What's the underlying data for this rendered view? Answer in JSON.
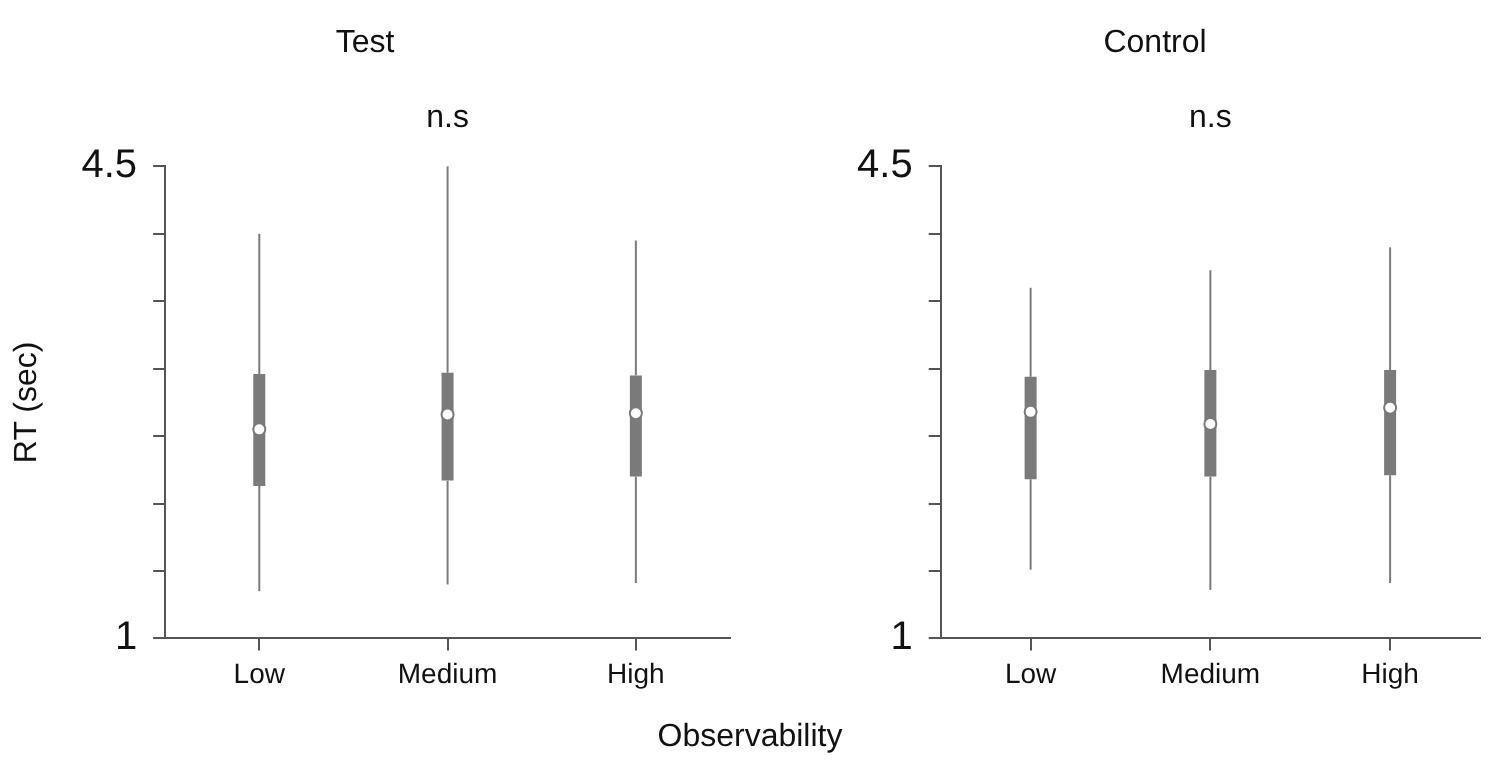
{
  "chart_data": [
    {
      "type": "box",
      "title": "Test",
      "annotations": [
        "n.s"
      ],
      "ylabel": "RT (sec)",
      "xlabel": "Observability",
      "categories": [
        "Low",
        "Medium",
        "High"
      ],
      "colors": [
        "#7a7a7a",
        "#7a7a7a",
        "#7a7a7a"
      ],
      "boxes": [
        {
          "low": 1.35,
          "q1": 2.13,
          "median": 2.55,
          "q3": 2.96,
          "high": 4.0
        },
        {
          "low": 1.4,
          "q1": 2.17,
          "median": 2.66,
          "q3": 2.97,
          "high": 4.5
        },
        {
          "low": 1.41,
          "q1": 2.2,
          "median": 2.67,
          "q3": 2.95,
          "high": 3.95
        }
      ],
      "ylim": [
        1,
        4.5
      ],
      "yticks": [
        {
          "value": 1,
          "label": "1"
        },
        {
          "value": 1.5,
          "label": null
        },
        {
          "value": 2,
          "label": null
        },
        {
          "value": 2.5,
          "label": null
        },
        {
          "value": 3,
          "label": null
        },
        {
          "value": 3.5,
          "label": null
        },
        {
          "value": 4,
          "label": null
        },
        {
          "value": 4.5,
          "label": "4.5"
        }
      ],
      "grid": false,
      "legend": false
    },
    {
      "type": "box",
      "title": "Control",
      "annotations": [
        "n.s"
      ],
      "categories": [
        "Low",
        "Medium",
        "High"
      ],
      "colors": [
        "#7a7a7a",
        "#7a7a7a",
        "#7a7a7a"
      ],
      "boxes": [
        {
          "low": 1.51,
          "q1": 2.18,
          "median": 2.68,
          "q3": 2.94,
          "high": 3.6
        },
        {
          "low": 1.36,
          "q1": 2.2,
          "median": 2.59,
          "q3": 2.99,
          "high": 3.73
        },
        {
          "low": 1.41,
          "q1": 2.21,
          "median": 2.71,
          "q3": 2.99,
          "high": 3.9
        }
      ],
      "ylim": [
        1,
        4.5
      ],
      "yticks": [
        {
          "value": 1,
          "label": "1"
        },
        {
          "value": 1.5,
          "label": null
        },
        {
          "value": 2,
          "label": null
        },
        {
          "value": 2.5,
          "label": null
        },
        {
          "value": 3,
          "label": null
        },
        {
          "value": 3.5,
          "label": null
        },
        {
          "value": 4,
          "label": null
        },
        {
          "value": 4.5,
          "label": "4.5"
        }
      ],
      "grid": false,
      "legend": false
    }
  ]
}
